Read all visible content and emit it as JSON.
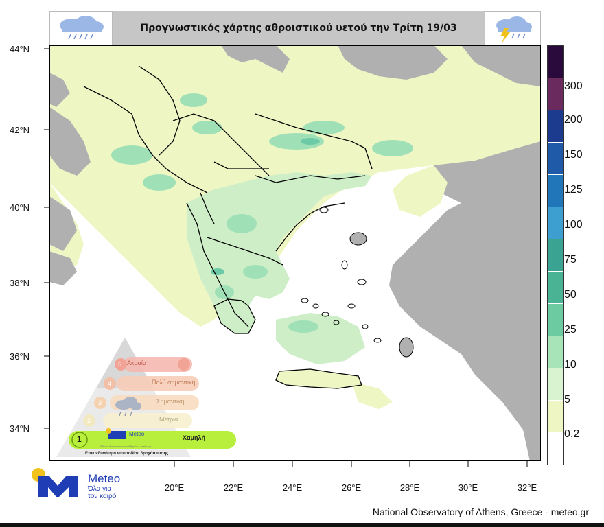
{
  "header": {
    "title": "Προγνωστικός χάρτης αθροιστικού υετού την Τρίτη 19/03",
    "left_icon": "rain-cloud-icon",
    "right_icon": "thunderstorm-cloud-icon"
  },
  "map": {
    "lat_labels": [
      "44°N",
      "42°N",
      "40°N",
      "38°N",
      "36°N",
      "34°N"
    ],
    "lon_labels": [
      "20°E",
      "22°E",
      "24°E",
      "26°E",
      "28°E",
      "30°E",
      "32°E"
    ],
    "colors": {
      "sea": "#ffffff",
      "outside_land": "#b0b0b0",
      "precip_low": "#eef7c4",
      "precip_5": "#cdeec6",
      "precip_10": "#9fe0b7",
      "precip_25": "#6ccaa6",
      "border": "#000000"
    }
  },
  "legend": {
    "labels": [
      "300",
      "200",
      "150",
      "125",
      "100",
      "75",
      "50",
      "25",
      "10",
      "5",
      "0.2"
    ],
    "colors": [
      "#2a0a3d",
      "#6b2a5e",
      "#1c3b8f",
      "#1f5aa8",
      "#2076b9",
      "#3c9fd0",
      "#3aa391",
      "#49b394",
      "#6dcba1",
      "#a7e4b7",
      "#d9f2cf",
      "#eef7c4",
      "#ffffff"
    ]
  },
  "warning_pyramid": {
    "title": "Επικινδυνότητα επεισοδίου βροχόπτωσης",
    "levels": [
      {
        "num": "5",
        "label": "Ακραία",
        "color": "#f5b9b0"
      },
      {
        "num": "4",
        "label": "Πολύ σημαντική",
        "color": "#f7cdb8"
      },
      {
        "num": "3",
        "label": "Σημαντική",
        "color": "#f8dcc0"
      },
      {
        "num": "2",
        "label": "Μέτρια",
        "color": "#f7efcf"
      },
      {
        "num": "1",
        "label": "Χαμηλή",
        "color": "#b7ef3c"
      }
    ],
    "brand": "Meteo",
    "brand_sub": "Εθνικό Αστεροσκοπείο Αθηνών · meteo.gr"
  },
  "logo": {
    "brand": "Meteo",
    "slogan_line1": "Όλα για",
    "slogan_line2": "τον καιρό"
  },
  "footer": {
    "credit": "National Observatory of Athens, Greece - meteo.gr"
  }
}
